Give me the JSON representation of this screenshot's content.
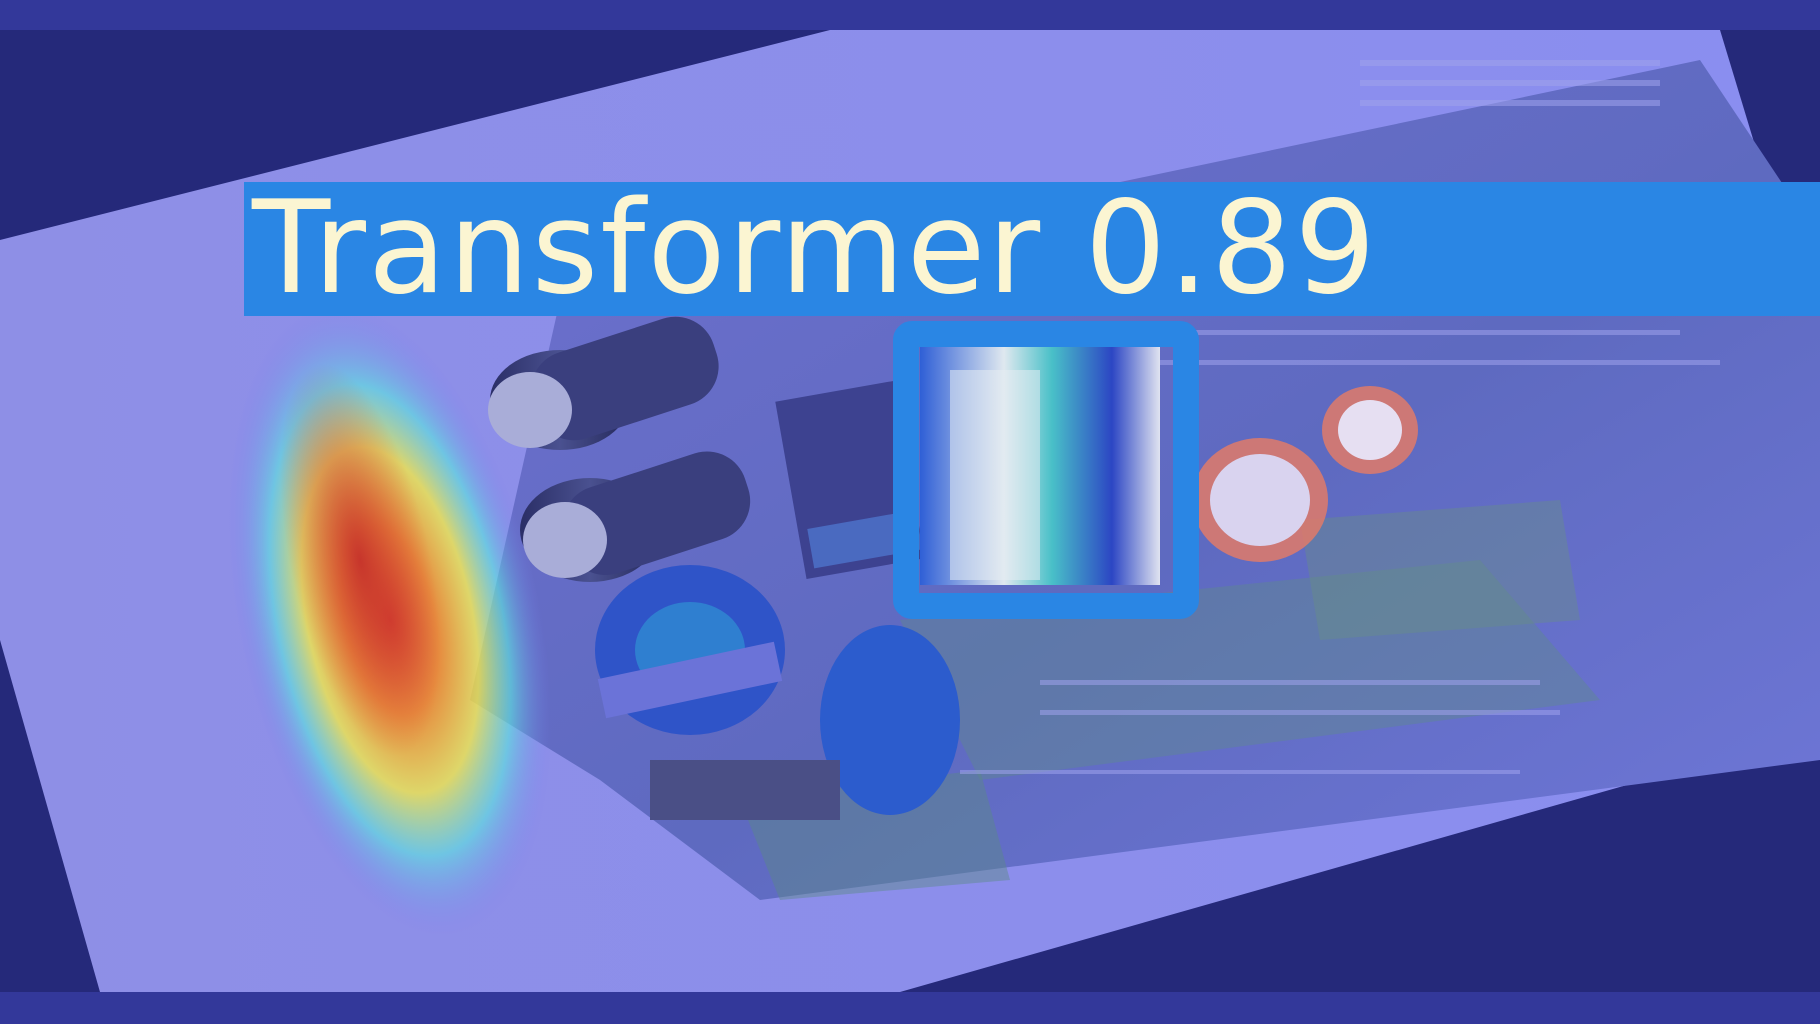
{
  "detection": {
    "label": "Transformer 0.89",
    "class_name": "Transformer",
    "confidence": 0.89,
    "box_color": "#2a86e4",
    "text_color": "#fbf5d2"
  },
  "overlay": {
    "heatmap": "jet-colormap",
    "tint_color": "#6f74e8"
  }
}
